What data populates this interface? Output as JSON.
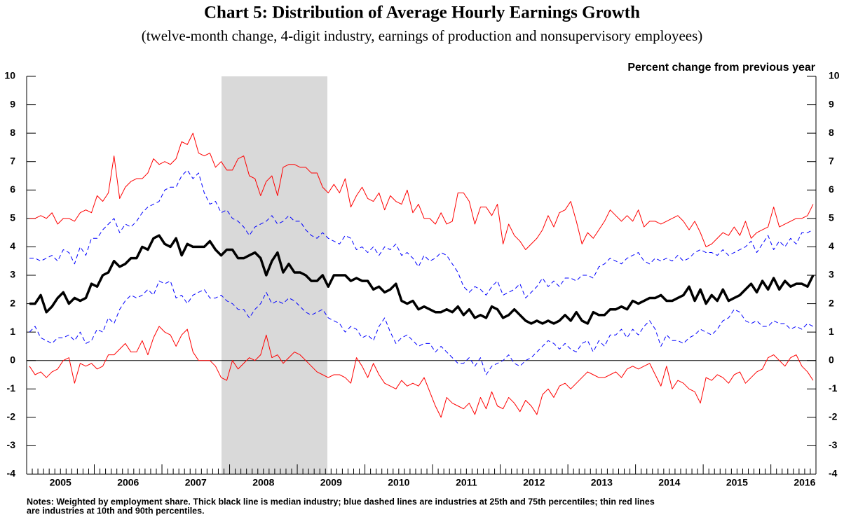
{
  "chart_data": {
    "type": "line",
    "title": "Chart 5: Distribution of Average Hourly Earnings Growth",
    "subtitle": "(twelve-month change, 4-digit industry, earnings of production and nonsupervisory employees)",
    "y_label": "Percent change from previous year",
    "notes": [
      "Notes: Weighted by employment share. Thick black line is median industry; blue dashed lines are industries at 25th and 75th percentiles; thin red lines",
      "are industries at 10th and 90th percentiles."
    ],
    "categories": [
      null,
      null,
      null,
      null,
      null,
      null,
      "2005",
      null,
      null,
      null,
      null,
      null,
      null,
      null,
      null,
      null,
      null,
      null,
      "2006",
      null,
      null,
      null,
      null,
      null,
      null,
      null,
      null,
      null,
      null,
      null,
      "2007",
      null,
      null,
      null,
      null,
      null,
      null,
      null,
      null,
      null,
      null,
      null,
      "2008",
      null,
      null,
      null,
      null,
      null,
      null,
      null,
      null,
      null,
      null,
      null,
      "2009",
      null,
      null,
      null,
      null,
      null,
      null,
      null,
      null,
      null,
      null,
      null,
      "2010",
      null,
      null,
      null,
      null,
      null,
      null,
      null,
      null,
      null,
      null,
      null,
      "2011",
      null,
      null,
      null,
      null,
      null,
      null,
      null,
      null,
      null,
      null,
      null,
      "2012",
      null,
      null,
      null,
      null,
      null,
      null,
      null,
      null,
      null,
      null,
      null,
      "2013",
      null,
      null,
      null,
      null,
      null,
      null,
      null,
      null,
      null,
      null,
      null,
      "2014",
      null,
      null,
      null,
      null,
      null,
      null,
      null,
      null,
      null,
      null,
      null,
      "2015",
      null,
      null,
      null,
      null,
      null,
      null,
      null,
      null,
      null,
      null,
      null,
      "2016",
      null
    ],
    "ylim": [
      -4,
      10
    ],
    "yticks": [
      -4,
      -3,
      -2,
      -1,
      0,
      1,
      2,
      3,
      4,
      5,
      6,
      7,
      8,
      9,
      10
    ],
    "series": [
      {
        "color": "#ff0000",
        "width": 1,
        "dashed": false,
        "values": [
          5.0,
          5.0,
          5.1,
          5.0,
          5.2,
          4.8,
          5.0,
          5.0,
          4.9,
          5.2,
          5.3,
          5.2,
          5.8,
          5.6,
          5.9,
          7.2,
          5.7,
          6.1,
          6.3,
          6.4,
          6.4,
          6.6,
          7.1,
          6.9,
          7.0,
          6.9,
          7.1,
          7.7,
          7.6,
          8.0,
          7.3,
          7.2,
          7.3,
          6.8,
          7.0,
          6.7,
          6.7,
          7.1,
          7.2,
          6.5,
          6.4,
          5.8,
          6.3,
          6.5,
          5.8,
          6.8,
          6.9,
          6.9,
          6.8,
          6.8,
          6.6,
          6.6,
          6.1,
          5.9,
          6.2,
          5.9,
          6.4,
          5.4,
          5.8,
          6.1,
          5.7,
          5.6,
          5.9,
          5.3,
          5.8,
          5.6,
          5.5,
          6.0,
          5.2,
          5.5,
          5.0,
          5.0,
          4.8,
          5.2,
          4.8,
          4.9,
          5.9,
          5.9,
          5.6,
          4.8,
          5.4,
          5.4,
          5.1,
          5.5,
          4.1,
          4.8,
          4.4,
          4.2,
          3.9,
          4.1,
          4.3,
          4.6,
          5.1,
          4.7,
          5.2,
          5.3,
          5.6,
          4.9,
          4.1,
          4.5,
          4.3,
          4.6,
          4.9,
          5.3,
          5.1,
          4.9,
          5.1,
          4.9,
          5.3,
          4.7,
          4.9,
          4.9,
          4.8,
          4.9,
          5.0,
          5.1,
          4.9,
          4.6,
          4.9,
          4.5,
          4.0,
          4.1,
          4.3,
          4.5,
          4.4,
          4.7,
          4.4,
          4.9,
          4.3,
          4.5,
          4.6,
          4.7,
          5.4,
          4.7,
          4.8,
          4.9,
          5.0,
          5.0,
          5.1,
          5.5
        ]
      },
      {
        "color": "#0000ff",
        "width": 1,
        "dashed": true,
        "values": [
          3.6,
          3.6,
          3.5,
          3.6,
          3.7,
          3.5,
          3.9,
          3.8,
          3.4,
          4.0,
          3.7,
          4.3,
          4.3,
          4.6,
          4.8,
          5.0,
          4.5,
          4.8,
          4.7,
          4.9,
          5.2,
          5.4,
          5.5,
          5.6,
          6.0,
          6.1,
          6.1,
          6.5,
          6.7,
          6.4,
          6.6,
          5.9,
          5.5,
          5.6,
          5.2,
          5.3,
          5.0,
          4.9,
          4.7,
          4.4,
          4.7,
          4.8,
          4.9,
          5.1,
          4.8,
          4.9,
          5.1,
          4.9,
          4.9,
          4.6,
          4.4,
          4.3,
          4.5,
          4.3,
          4.2,
          4.1,
          4.4,
          4.3,
          3.9,
          4.0,
          3.8,
          4.0,
          3.7,
          4.0,
          3.9,
          4.1,
          3.7,
          3.8,
          3.6,
          3.3,
          3.7,
          3.5,
          3.6,
          3.8,
          3.7,
          3.4,
          3.1,
          2.6,
          2.4,
          2.6,
          2.5,
          2.3,
          2.6,
          2.8,
          2.3,
          2.4,
          2.5,
          2.7,
          2.2,
          2.4,
          2.6,
          2.9,
          2.6,
          2.8,
          2.6,
          2.9,
          2.9,
          2.8,
          3.0,
          3.0,
          2.9,
          3.3,
          3.4,
          3.6,
          3.5,
          3.4,
          3.6,
          3.7,
          3.8,
          3.5,
          3.4,
          3.6,
          3.5,
          3.6,
          3.5,
          3.7,
          3.5,
          3.6,
          3.8,
          3.9,
          3.8,
          3.8,
          3.7,
          3.9,
          3.7,
          3.8,
          3.9,
          4.0,
          4.2,
          3.8,
          4.1,
          4.4,
          3.9,
          4.2,
          4.0,
          4.3,
          4.1,
          4.5,
          4.5,
          4.6
        ]
      },
      {
        "color": "#000000",
        "width": 3.5,
        "dashed": false,
        "values": [
          2.0,
          2.0,
          2.3,
          1.7,
          1.9,
          2.2,
          2.4,
          2.0,
          2.2,
          2.1,
          2.2,
          2.7,
          2.6,
          3.0,
          3.1,
          3.5,
          3.3,
          3.4,
          3.6,
          3.6,
          4.0,
          3.9,
          4.3,
          4.4,
          4.1,
          4.0,
          4.3,
          3.7,
          4.1,
          4.0,
          4.0,
          4.0,
          4.2,
          3.9,
          3.7,
          3.9,
          3.9,
          3.6,
          3.6,
          3.7,
          3.8,
          3.6,
          3.0,
          3.5,
          3.8,
          3.1,
          3.4,
          3.1,
          3.1,
          3.0,
          2.8,
          2.8,
          3.0,
          2.6,
          3.0,
          3.0,
          3.0,
          2.8,
          2.9,
          2.8,
          2.8,
          2.5,
          2.6,
          2.4,
          2.5,
          2.7,
          2.1,
          2.0,
          2.1,
          1.8,
          1.9,
          1.8,
          1.7,
          1.7,
          1.8,
          1.7,
          1.9,
          1.6,
          1.8,
          1.5,
          1.6,
          1.5,
          1.9,
          1.8,
          1.5,
          1.6,
          1.8,
          1.6,
          1.4,
          1.3,
          1.4,
          1.3,
          1.4,
          1.3,
          1.4,
          1.6,
          1.4,
          1.7,
          1.4,
          1.3,
          1.7,
          1.6,
          1.6,
          1.8,
          1.8,
          1.9,
          1.8,
          2.1,
          2.0,
          2.1,
          2.2,
          2.2,
          2.3,
          2.1,
          2.1,
          2.2,
          2.3,
          2.6,
          2.1,
          2.5,
          2.0,
          2.3,
          2.1,
          2.5,
          2.1,
          2.2,
          2.3,
          2.5,
          2.7,
          2.4,
          2.8,
          2.5,
          2.9,
          2.5,
          2.8,
          2.6,
          2.7,
          2.7,
          2.6,
          3.0
        ]
      },
      {
        "color": "#0000ff",
        "width": 1,
        "dashed": true,
        "values": [
          1.0,
          1.2,
          0.8,
          0.7,
          0.6,
          0.8,
          0.8,
          0.9,
          0.7,
          1.0,
          0.6,
          0.7,
          1.1,
          1.0,
          1.5,
          1.3,
          1.8,
          2.1,
          2.3,
          2.2,
          2.3,
          2.5,
          2.3,
          2.8,
          2.7,
          2.8,
          2.2,
          2.3,
          2.0,
          2.3,
          2.4,
          2.5,
          2.2,
          2.2,
          2.3,
          2.1,
          2.0,
          1.8,
          1.8,
          1.5,
          1.8,
          2.0,
          2.4,
          2.0,
          2.1,
          2.0,
          2.2,
          2.1,
          1.9,
          1.7,
          1.6,
          1.7,
          1.8,
          1.5,
          1.4,
          1.3,
          1.0,
          1.2,
          1.1,
          0.8,
          0.9,
          0.7,
          1.2,
          1.5,
          1.0,
          0.6,
          0.8,
          0.9,
          0.7,
          0.5,
          0.6,
          0.6,
          0.3,
          0.5,
          0.3,
          0.1,
          -0.1,
          -0.1,
          0.1,
          -0.2,
          0.1,
          -0.5,
          -0.2,
          -0.1,
          0.0,
          0.2,
          -0.1,
          -0.2,
          0.0,
          0.1,
          0.3,
          0.5,
          0.7,
          0.6,
          0.4,
          0.6,
          0.4,
          0.3,
          0.6,
          0.7,
          0.3,
          0.7,
          0.5,
          0.9,
          0.9,
          1.1,
          0.8,
          1.1,
          0.9,
          1.2,
          1.4,
          1.1,
          0.5,
          0.9,
          0.7,
          0.7,
          0.6,
          0.8,
          0.9,
          1.1,
          1.0,
          0.9,
          1.1,
          1.4,
          1.5,
          1.8,
          1.7,
          1.4,
          1.3,
          1.4,
          1.2,
          1.2,
          1.4,
          1.3,
          1.3,
          1.1,
          1.2,
          1.1,
          1.3,
          1.2
        ]
      },
      {
        "color": "#ff0000",
        "width": 1,
        "dashed": false,
        "values": [
          -0.2,
          -0.5,
          -0.4,
          -0.6,
          -0.4,
          -0.3,
          0.0,
          0.1,
          -0.8,
          -0.1,
          -0.2,
          -0.1,
          -0.3,
          -0.2,
          0.2,
          0.2,
          0.4,
          0.6,
          0.3,
          0.3,
          0.7,
          0.2,
          0.8,
          1.2,
          1.0,
          0.9,
          0.5,
          0.9,
          1.1,
          0.3,
          0.0,
          0.0,
          0.0,
          -0.2,
          -0.6,
          -0.7,
          0.0,
          -0.3,
          -0.1,
          0.1,
          0.0,
          0.2,
          0.9,
          0.1,
          0.2,
          -0.1,
          0.1,
          0.3,
          0.2,
          0.0,
          -0.2,
          -0.4,
          -0.5,
          -0.6,
          -0.5,
          -0.5,
          -0.6,
          -0.8,
          0.1,
          -0.2,
          -0.6,
          -0.1,
          -0.5,
          -0.8,
          -0.9,
          -1.0,
          -0.7,
          -0.9,
          -0.8,
          -0.9,
          -0.6,
          -1.1,
          -1.6,
          -2.0,
          -1.3,
          -1.5,
          -1.6,
          -1.7,
          -1.5,
          -1.9,
          -1.3,
          -1.7,
          -1.1,
          -1.6,
          -1.7,
          -1.3,
          -1.5,
          -1.8,
          -1.4,
          -1.6,
          -1.9,
          -1.2,
          -1.0,
          -1.3,
          -0.9,
          -0.8,
          -1.0,
          -0.8,
          -0.6,
          -0.4,
          -0.5,
          -0.6,
          -0.6,
          -0.5,
          -0.4,
          -0.6,
          -0.3,
          -0.2,
          -0.3,
          -0.2,
          -0.1,
          -0.5,
          -0.9,
          -0.2,
          -1.0,
          -0.7,
          -0.8,
          -1.0,
          -1.1,
          -1.5,
          -0.6,
          -0.7,
          -0.5,
          -0.6,
          -0.8,
          -0.5,
          -0.4,
          -0.8,
          -0.6,
          -0.4,
          -0.3,
          0.1,
          0.2,
          0.0,
          -0.2,
          0.1,
          0.2,
          -0.2,
          -0.4,
          -0.7
        ]
      }
    ]
  }
}
